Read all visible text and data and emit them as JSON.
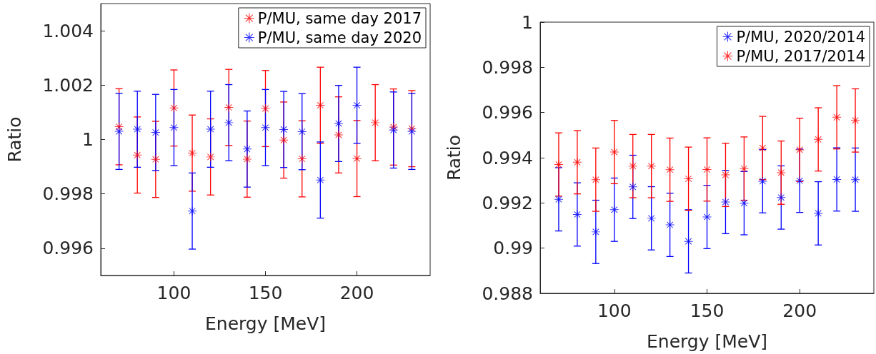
{
  "chart_data": [
    {
      "type": "scatter",
      "xlabel": "Energy [MeV]",
      "ylabel": "Ratio",
      "x": [
        70,
        80,
        90,
        100,
        110,
        120,
        130,
        140,
        150,
        160,
        170,
        180,
        190,
        200,
        210,
        220,
        230
      ],
      "xlim": [
        60,
        240
      ],
      "xticks": [
        100,
        150,
        200
      ],
      "ylim": [
        0.995,
        1.005
      ],
      "yticks": [
        0.996,
        0.998,
        1,
        1.002,
        1.004
      ],
      "grid": false,
      "legend": "top right",
      "marker": "star",
      "series": [
        {
          "name": "P/MU, same day 2017",
          "color": "#ff0000",
          "values": [
            1.00047,
            0.99943,
            0.99927,
            1.00116,
            0.9995,
            0.99936,
            1.00118,
            0.99928,
            1.00114,
            0.99998,
            0.99929,
            1.00126,
            1.00017,
            0.9993,
            1.00062,
            1.00046,
            1.0004
          ],
          "errors": [
            0.0014,
            0.0014,
            0.0014,
            0.0014,
            0.0014,
            0.0014,
            0.0014,
            0.0014,
            0.0014,
            0.0014,
            0.0014,
            0.0014,
            0.0014,
            0.0014,
            0.0014,
            0.0014,
            0.0014
          ]
        },
        {
          "name": "P/MU, same day 2020",
          "color": "#0000ff",
          "values": [
            1.0003,
            1.00038,
            1.00026,
            1.00044,
            0.99737,
            1.00038,
            1.00062,
            0.99965,
            1.00044,
            1.00037,
            1.00029,
            0.99851,
            1.00059,
            1.00126,
            null,
            1.00035,
            1.0003
          ],
          "errors": [
            0.0014,
            0.0014,
            0.0014,
            0.0014,
            0.0014,
            0.0014,
            0.0014,
            0.0014,
            0.0014,
            0.0014,
            0.0014,
            0.0014,
            0.0014,
            0.0014,
            null,
            0.0014,
            0.0014
          ]
        }
      ]
    },
    {
      "type": "scatter",
      "xlabel": "Energy [MeV]",
      "ylabel": "Ratio",
      "x": [
        70,
        80,
        90,
        100,
        110,
        120,
        130,
        140,
        150,
        160,
        170,
        180,
        190,
        200,
        210,
        220,
        230
      ],
      "xlim": [
        60,
        240
      ],
      "xticks": [
        100,
        150,
        200
      ],
      "ylim": [
        0.988,
        1
      ],
      "yticks": [
        0.988,
        0.99,
        0.992,
        0.994,
        0.996,
        0.998,
        1
      ],
      "grid": false,
      "legend": "top right",
      "marker": "star",
      "series": [
        {
          "name": "P/MU, 2020/2014",
          "color": "#0000ff",
          "values": [
            0.99216,
            0.99149,
            0.99072,
            0.9917,
            0.99271,
            0.99132,
            0.99103,
            0.9903,
            0.99138,
            0.99204,
            0.99199,
            0.99296,
            0.99224,
            0.99298,
            0.99154,
            0.99304,
            0.99303
          ],
          "errors": [
            0.0014,
            0.0014,
            0.0014,
            0.0014,
            0.0014,
            0.0014,
            0.0014,
            0.0014,
            0.0014,
            0.0014,
            0.0014,
            0.0014,
            0.0014,
            0.0014,
            0.0014,
            0.0014,
            0.0014
          ]
        },
        {
          "name": "P/MU, 2017/2014",
          "color": "#ff0000",
          "values": [
            0.9937,
            0.9938,
            0.99303,
            0.99425,
            0.99363,
            0.99363,
            0.99347,
            0.99307,
            0.99348,
            0.99324,
            0.99352,
            0.99443,
            0.99334,
            0.99435,
            0.99481,
            0.99579,
            0.99565
          ],
          "errors": [
            0.0014,
            0.0014,
            0.0014,
            0.0014,
            0.0014,
            0.0014,
            0.0014,
            0.0014,
            0.0014,
            0.0014,
            0.0014,
            0.0014,
            0.0014,
            0.0014,
            0.0014,
            0.0014,
            0.0014
          ]
        }
      ]
    }
  ]
}
